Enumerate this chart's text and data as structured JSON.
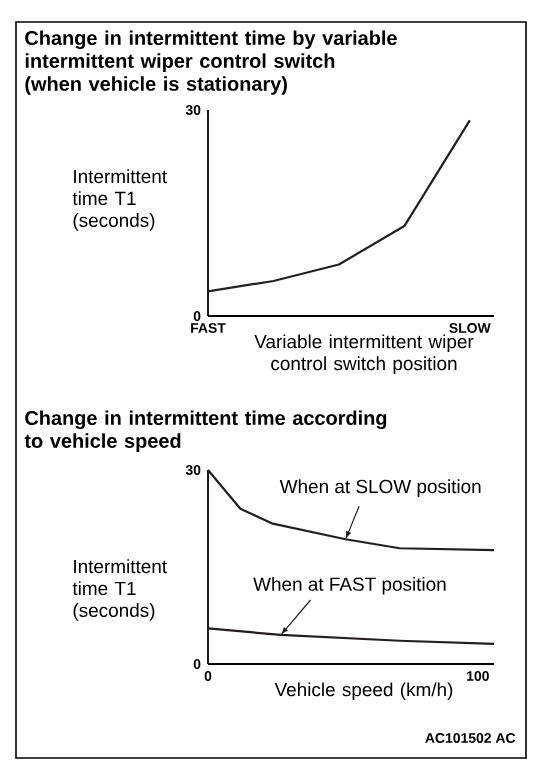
{
  "chart_data": [
    {
      "type": "line",
      "title": "Change in intermittent time by variable intermittent wiper control switch (when vehicle is stationary)",
      "xlabel": "Variable intermittent wiper control switch position",
      "ylabel": "Intermittent time T1 (seconds)",
      "categories": [
        "FAST",
        null,
        null,
        null,
        "SLOW"
      ],
      "ylim": [
        0,
        30
      ],
      "yticks": [
        0,
        30
      ],
      "series": [
        {
          "color": "#231f20",
          "values": [
            3.6,
            5.1,
            7.5,
            13.1,
            28.5
          ]
        }
      ]
    },
    {
      "type": "line",
      "title": "Change in intermittent time according to vehicle speed",
      "xlabel": "Vehicle speed  (km/h)",
      "ylabel": "Intermittent time T1 (seconds)",
      "xlim": [
        0,
        106
      ],
      "xticks": [
        0,
        100
      ],
      "ylim": [
        0,
        30
      ],
      "yticks": [
        0,
        30
      ],
      "series": [
        {
          "name": "When at SLOW position",
          "color": "#231f20",
          "x": [
            0,
            12,
            24,
            51,
            71,
            106
          ],
          "values": [
            30,
            24,
            21.7,
            19.3,
            17.9,
            17.6
          ]
        },
        {
          "name": "When at FAST position",
          "color": "#231f20",
          "x": [
            0,
            27,
            71,
            106
          ],
          "values": [
            5.5,
            4.5,
            3.6,
            3.1
          ]
        }
      ],
      "annotations": [
        "AC101502 AC"
      ]
    }
  ]
}
